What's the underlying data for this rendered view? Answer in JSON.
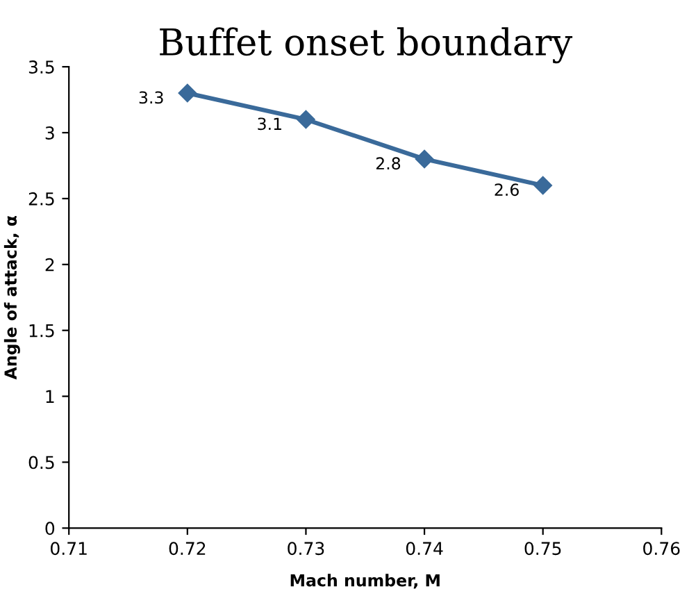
{
  "chart_data": {
    "type": "line",
    "title": "Buffet onset boundary",
    "xlabel": "Mach number, M",
    "ylabel": "Angle of attack, α",
    "x": [
      0.72,
      0.73,
      0.74,
      0.75
    ],
    "series": [
      {
        "color": "#3a6a9a",
        "values": [
          3.3,
          3.1,
          2.8,
          2.6
        ]
      }
    ],
    "xlim": [
      0.71,
      0.76
    ],
    "xticks": [
      0.71,
      0.72,
      0.73,
      0.74,
      0.75,
      0.76
    ],
    "ylim": [
      0,
      3.5
    ],
    "yticks": [
      0,
      0.5,
      1,
      1.5,
      2,
      2.5,
      3,
      3.5
    ],
    "marker": "diamond",
    "line_style": "solid",
    "grid": false,
    "data_labels": true
  }
}
